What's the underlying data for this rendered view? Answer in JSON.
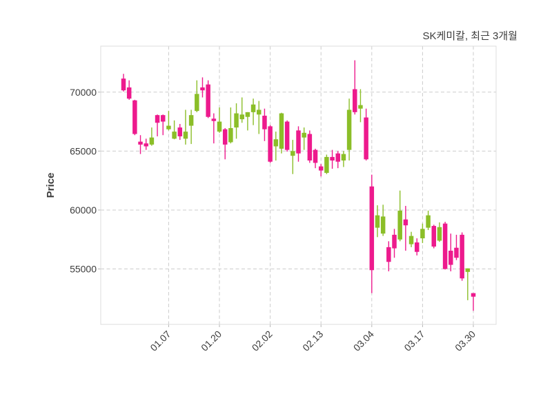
{
  "title": "SK케미칼, 최근 3개월",
  "chart_data": {
    "type": "candlestick",
    "title": "SK케미칼, 최근 3개월",
    "xlabel": "",
    "ylabel": "Price",
    "ylim": [
      50300,
      73900
    ],
    "y_ticks": [
      55000,
      60000,
      65000,
      70000
    ],
    "x_tick_labels": [
      "01.07",
      "01.20",
      "02.02",
      "02.13",
      "03.04",
      "03.17",
      "03.30"
    ],
    "x_tick_indices": [
      8,
      17,
      26,
      35,
      44,
      53,
      62
    ],
    "grid": "dashed-both-axes",
    "legend": "none",
    "up_color": "#8bbe28",
    "down_color": "#ed1a8d",
    "grid_color": "#cccccc",
    "border_color": "#dcdcdc",
    "text_color": "#3c3c3c",
    "candles_format": [
      "open",
      "high",
      "low",
      "close"
    ],
    "candles": [
      [
        71150,
        71550,
        70050,
        70150
      ],
      [
        70400,
        71000,
        69350,
        69450
      ],
      [
        69300,
        69350,
        66350,
        66450
      ],
      [
        65800,
        66350,
        64750,
        65550
      ],
      [
        65650,
        66050,
        65100,
        65400
      ],
      [
        65550,
        67000,
        65450,
        66150
      ],
      [
        68050,
        68100,
        66250,
        67400
      ],
      [
        68050,
        68100,
        66350,
        67500
      ],
      [
        66850,
        68400,
        66750,
        67150
      ],
      [
        66050,
        67600,
        66000,
        66650
      ],
      [
        67000,
        67300,
        65950,
        66250
      ],
      [
        66050,
        68500,
        65550,
        66650
      ],
      [
        67150,
        68500,
        65600,
        68050
      ],
      [
        68400,
        71000,
        68300,
        69850
      ],
      [
        70400,
        71250,
        69550,
        70150
      ],
      [
        70650,
        71000,
        67800,
        67900
      ],
      [
        67750,
        68200,
        65650,
        67550
      ],
      [
        66650,
        68700,
        66550,
        67500
      ],
      [
        66850,
        66950,
        64300,
        65550
      ],
      [
        65750,
        68700,
        65650,
        66950
      ],
      [
        67000,
        69050,
        66050,
        68200
      ],
      [
        67700,
        69550,
        67400,
        68100
      ],
      [
        67900,
        68300,
        66750,
        68300
      ],
      [
        68300,
        69450,
        67200,
        68950
      ],
      [
        68100,
        69250,
        66450,
        68500
      ],
      [
        68000,
        68600,
        65850,
        66850
      ],
      [
        67100,
        67200,
        64000,
        64100
      ],
      [
        65400,
        66650,
        64200,
        66000
      ],
      [
        65200,
        68250,
        64800,
        68200
      ],
      [
        67500,
        67600,
        64950,
        65100
      ],
      [
        64600,
        65950,
        63050,
        65000
      ],
      [
        66750,
        67100,
        64100,
        64800
      ],
      [
        66150,
        67000,
        65100,
        66550
      ],
      [
        66450,
        66750,
        64000,
        64200
      ],
      [
        65100,
        65200,
        63550,
        64000
      ],
      [
        63700,
        63900,
        62850,
        63350
      ],
      [
        63150,
        64700,
        63050,
        64500
      ],
      [
        64500,
        65100,
        63500,
        64200
      ],
      [
        64800,
        65000,
        63550,
        64100
      ],
      [
        64200,
        65000,
        63650,
        64750
      ],
      [
        65100,
        69450,
        64200,
        68500
      ],
      [
        70250,
        72700,
        68100,
        68300
      ],
      [
        68600,
        70250,
        67450,
        68900
      ],
      [
        67850,
        68600,
        64200,
        64300
      ],
      [
        62000,
        63000,
        52950,
        54900
      ],
      [
        58500,
        60400,
        57700,
        59550
      ],
      [
        58000,
        60450,
        57800,
        59450
      ],
      [
        56850,
        57350,
        54800,
        55600
      ],
      [
        57900,
        58400,
        55950,
        56750
      ],
      [
        57500,
        61650,
        57350,
        59950
      ],
      [
        59200,
        60350,
        56550,
        58700
      ],
      [
        57100,
        58150,
        56850,
        57800
      ],
      [
        57250,
        57600,
        56150,
        56450
      ],
      [
        57600,
        58850,
        57200,
        58400
      ],
      [
        58500,
        59950,
        58300,
        59550
      ],
      [
        58650,
        58750,
        56750,
        56900
      ],
      [
        57400,
        58950,
        57300,
        58550
      ],
      [
        58850,
        59000,
        54950,
        55000
      ],
      [
        56550,
        58000,
        54800,
        55350
      ],
      [
        56800,
        57900,
        55750,
        55950
      ],
      [
        57900,
        58100,
        54000,
        54200
      ],
      [
        54750,
        55050,
        52350,
        55050
      ],
      [
        52950,
        52950,
        51450,
        52650
      ]
    ]
  }
}
